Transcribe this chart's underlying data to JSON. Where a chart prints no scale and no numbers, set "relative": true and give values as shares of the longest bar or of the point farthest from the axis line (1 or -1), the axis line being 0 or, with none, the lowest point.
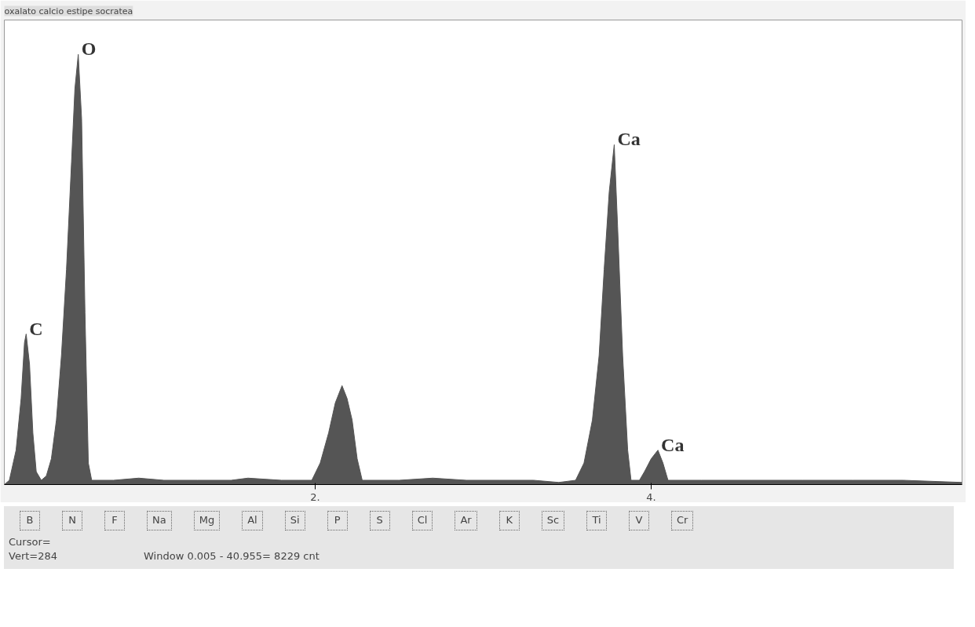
{
  "chart_data": {
    "type": "area",
    "title": "oxalato calcio estipe socratea",
    "relative": true,
    "color": "#555555",
    "x": [
      0.15,
      0.18,
      0.22,
      0.25,
      0.27,
      0.28,
      0.3,
      0.32,
      0.34,
      0.37,
      0.4,
      0.43,
      0.46,
      0.49,
      0.52,
      0.55,
      0.57,
      0.59,
      0.61,
      0.63,
      0.65,
      0.67,
      0.8,
      0.95,
      1.1,
      1.3,
      1.5,
      1.6,
      1.8,
      1.9,
      1.98,
      2.03,
      2.08,
      2.12,
      2.16,
      2.19,
      2.22,
      2.25,
      2.28,
      2.5,
      2.7,
      2.9,
      3.1,
      3.3,
      3.45,
      3.55,
      3.6,
      3.65,
      3.69,
      3.72,
      3.75,
      3.78,
      3.8,
      3.83,
      3.86,
      3.88,
      3.93,
      3.96,
      4.0,
      4.04,
      4.07,
      4.1,
      4.3,
      4.6,
      4.9,
      5.2,
      5.5,
      5.85
    ],
    "values": [
      0,
      0.01,
      0.08,
      0.2,
      0.33,
      0.35,
      0.28,
      0.12,
      0.03,
      0.01,
      0.02,
      0.06,
      0.15,
      0.3,
      0.5,
      0.75,
      0.92,
      1.0,
      0.85,
      0.4,
      0.05,
      0.01,
      0.01,
      0.015,
      0.01,
      0.01,
      0.01,
      0.015,
      0.01,
      0.01,
      0.01,
      0.05,
      0.12,
      0.19,
      0.23,
      0.2,
      0.15,
      0.06,
      0.01,
      0.01,
      0.015,
      0.01,
      0.01,
      0.01,
      0.005,
      0.01,
      0.05,
      0.15,
      0.3,
      0.5,
      0.68,
      0.79,
      0.6,
      0.3,
      0.08,
      0.01,
      0.01,
      0.03,
      0.06,
      0.08,
      0.05,
      0.01,
      0.01,
      0.01,
      0.01,
      0.01,
      0.01,
      0.005
    ],
    "xlim": [
      0.15,
      5.85
    ],
    "xticks": [
      {
        "value": 2,
        "label": "2."
      },
      {
        "value": 4,
        "label": "4."
      }
    ],
    "grid": false,
    "annotations": [
      {
        "text": "C",
        "x": 0.28,
        "y": 0.35
      },
      {
        "text": "O",
        "x": 0.59,
        "y": 1.0
      },
      {
        "text": "Ca",
        "x": 3.78,
        "y": 0.79
      },
      {
        "text": "Ca",
        "x": 4.04,
        "y": 0.08
      },
      "B",
      "N",
      "F",
      "Na",
      "Mg",
      "Al",
      "Si",
      "P",
      "S",
      "Cl",
      "Ar",
      "K",
      "Sc",
      "Ti",
      "V",
      "Cr",
      "Cursor=",
      "Vert=284",
      "Window 0.005 - 40.955=  8229 cnt"
    ]
  }
}
